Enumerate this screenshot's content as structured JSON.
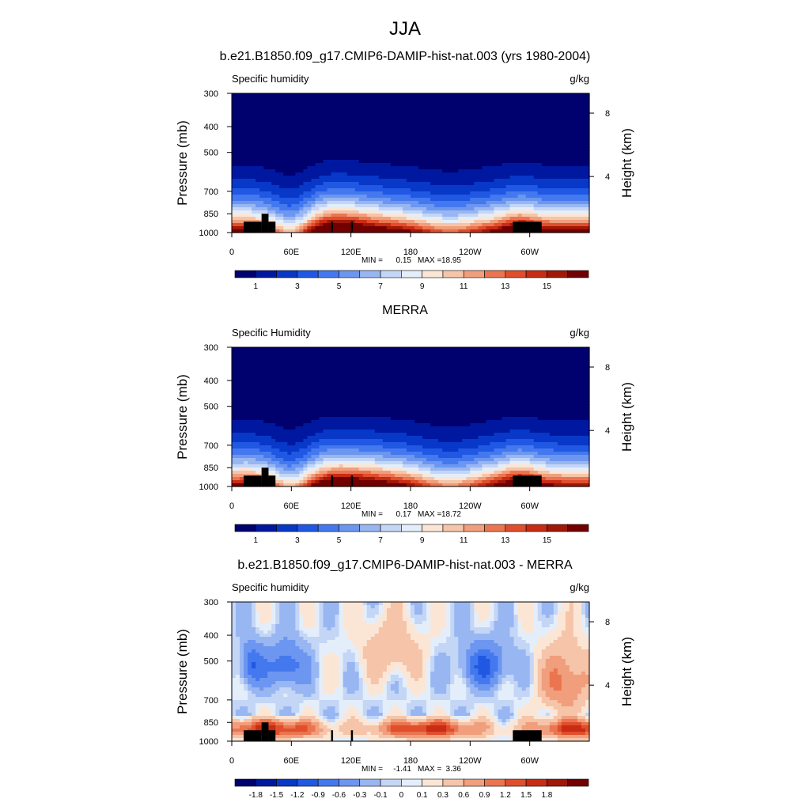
{
  "figure": {
    "title": "JJA"
  },
  "chart_data": [
    {
      "type": "heatmap",
      "title": "b.e21.B1850.f09_g17.CMIP6-DAMIP-hist-nat.003 (yrs 1980-2004)",
      "left_caption": "Specific humidity",
      "units": "g/kg",
      "ylabel": "Pressure (mb)",
      "ylabel_right": "Height (km)",
      "x_ticks": [
        "0",
        "60E",
        "120E",
        "180",
        "120W",
        "60W"
      ],
      "x_tick_values": [
        0,
        60,
        120,
        180,
        240,
        300
      ],
      "xlim": [
        0,
        360
      ],
      "y_ticks": [
        "300",
        "400",
        "500",
        "700",
        "850",
        "1000"
      ],
      "y_tick_values": [
        300,
        400,
        500,
        700,
        850,
        1000
      ],
      "ylim": [
        1000,
        300
      ],
      "height_ticks": [
        "8",
        "4"
      ],
      "height_tick_values": [
        8,
        4
      ],
      "min_label": "MIN =",
      "min": "0.15",
      "max_label": "MAX =",
      "max": "18.95",
      "colorbar": {
        "labels": [
          "1",
          "3",
          "5",
          "7",
          "9",
          "11",
          "13",
          "15"
        ],
        "levels": [
          0,
          1,
          2,
          3,
          4,
          5,
          6,
          7,
          8,
          9,
          10,
          11,
          12,
          13,
          14,
          15,
          16
        ]
      },
      "field": "full"
    },
    {
      "type": "heatmap",
      "title": "MERRA",
      "left_caption": "Specific Humidity",
      "units": "g/kg",
      "ylabel": "Pressure (mb)",
      "ylabel_right": "Height (km)",
      "x_ticks": [
        "0",
        "60E",
        "120E",
        "180",
        "120W",
        "60W"
      ],
      "x_tick_values": [
        0,
        60,
        120,
        180,
        240,
        300
      ],
      "xlim": [
        0,
        360
      ],
      "y_ticks": [
        "300",
        "400",
        "500",
        "700",
        "850",
        "1000"
      ],
      "y_tick_values": [
        300,
        400,
        500,
        700,
        850,
        1000
      ],
      "ylim": [
        1000,
        300
      ],
      "height_ticks": [
        "8",
        "4"
      ],
      "height_tick_values": [
        8,
        4
      ],
      "min_label": "MIN =",
      "min": "0.17",
      "max_label": "MAX =",
      "max": "18.72",
      "colorbar": {
        "labels": [
          "1",
          "3",
          "5",
          "7",
          "9",
          "11",
          "13",
          "15"
        ],
        "levels": [
          0,
          1,
          2,
          3,
          4,
          5,
          6,
          7,
          8,
          9,
          10,
          11,
          12,
          13,
          14,
          15,
          16
        ]
      },
      "field": "full"
    },
    {
      "type": "heatmap",
      "title": "b.e21.B1850.f09_g17.CMIP6-DAMIP-hist-nat.003 - MERRA",
      "left_caption": "Specific humidity",
      "units": "g/kg",
      "ylabel": "Pressure (mb)",
      "ylabel_right": "Height (km)",
      "x_ticks": [
        "0",
        "60E",
        "120E",
        "180",
        "120W",
        "60W"
      ],
      "x_tick_values": [
        0,
        60,
        120,
        180,
        240,
        300
      ],
      "xlim": [
        0,
        360
      ],
      "y_ticks": [
        "300",
        "400",
        "500",
        "700",
        "850",
        "1000"
      ],
      "y_tick_values": [
        300,
        400,
        500,
        700,
        850,
        1000
      ],
      "ylim": [
        1000,
        300
      ],
      "height_ticks": [
        "8",
        "4"
      ],
      "height_tick_values": [
        8,
        4
      ],
      "min_label": "MIN =",
      "min": "-1.41",
      "max_label": "MAX =",
      "max": "3.36",
      "colorbar": {
        "labels": [
          "-1.8",
          "-1.5",
          "-1.2",
          "-0.9",
          "-0.6",
          "-0.3",
          "-0.1",
          "0",
          "0.1",
          "0.3",
          "0.6",
          "0.9",
          "1.2",
          "1.5",
          "1.8"
        ],
        "levels": [
          -1.8,
          -1.5,
          -1.2,
          -0.9,
          -0.6,
          -0.3,
          -0.1,
          0,
          0.1,
          0.3,
          0.6,
          0.9,
          1.2,
          1.5,
          1.8
        ]
      },
      "field": "diff"
    }
  ],
  "colormap": [
    "#00006e",
    "#0018a0",
    "#0838c8",
    "#2058e4",
    "#4478ee",
    "#6c96f0",
    "#98b6f2",
    "#c4d6f6",
    "#e4eefa",
    "#fbe6d6",
    "#f6c4a8",
    "#f19e7c",
    "#ea7550",
    "#e04e2c",
    "#c82c14",
    "#a01808",
    "#720000"
  ]
}
